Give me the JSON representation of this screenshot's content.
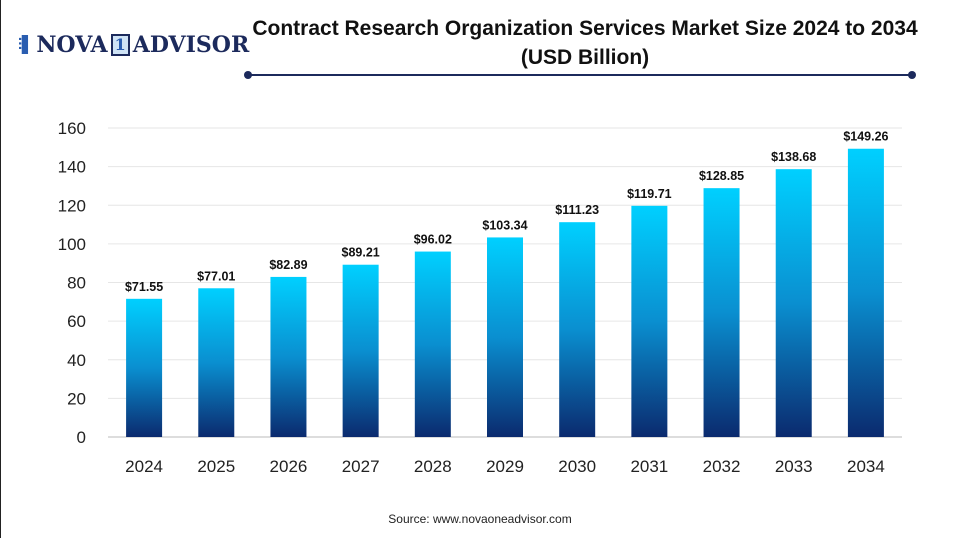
{
  "brand": {
    "logo_text_left": "NOVA",
    "logo_text_num": "1",
    "logo_text_right": "ADVISOR"
  },
  "source": "Source: www.novaoneadvisor.com",
  "colors": {
    "bar_top": "#00d0ff",
    "bar_bottom": "#0b2a6e",
    "title_rule": "#1c2a5c"
  },
  "chart_data": {
    "type": "bar",
    "title": "Contract Research Organization Services Market Size 2024 to 2034 (USD Billion)",
    "categories": [
      "2024",
      "2025",
      "2026",
      "2027",
      "2028",
      "2029",
      "2030",
      "2031",
      "2032",
      "2033",
      "2034"
    ],
    "values": [
      71.55,
      77.01,
      82.89,
      89.21,
      96.02,
      103.34,
      111.23,
      119.71,
      128.85,
      138.68,
      149.26
    ],
    "data_labels": [
      "$71.55",
      "$77.01",
      "$82.89",
      "$89.21",
      "$96.02",
      "$103.34",
      "$111.23",
      "$119.71",
      "$128.85",
      "$138.68",
      "$149.26"
    ],
    "yticks": [
      0,
      20,
      40,
      60,
      80,
      100,
      120,
      140,
      160
    ],
    "ylim": [
      0,
      160
    ],
    "xlabel": "",
    "ylabel": "",
    "grid": true,
    "legend": "none"
  }
}
